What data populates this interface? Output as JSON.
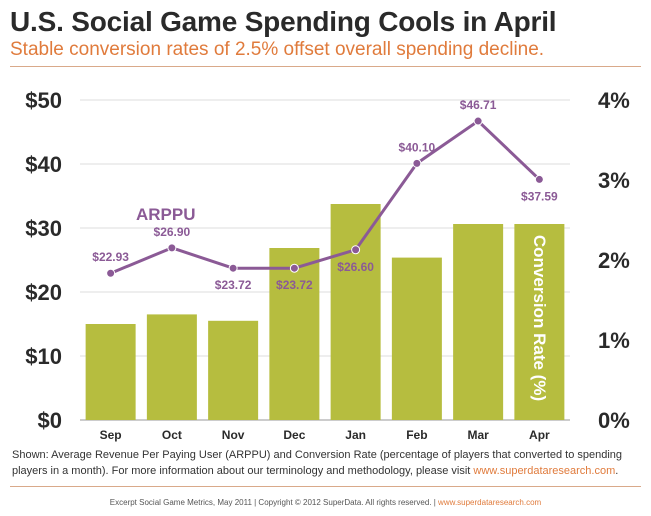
{
  "header": {
    "title": "U.S. Social Game Spending Cools in April",
    "subtitle": "Stable conversion rates of 2.5% offset overall spending decline."
  },
  "chart_data": {
    "type": "bar+line",
    "categories": [
      "Sep",
      "Oct",
      "Nov",
      "Dec",
      "Jan",
      "Feb",
      "Mar",
      "Apr"
    ],
    "bars": {
      "name": "Conversion Rate (%)",
      "axis": "right",
      "values": [
        1.2,
        1.32,
        1.24,
        2.15,
        2.7,
        2.03,
        2.45,
        2.45
      ],
      "ylim": [
        0,
        4
      ],
      "ticks": [
        "0%",
        "1%",
        "2%",
        "3%",
        "4%"
      ],
      "color": "#b6bd3f"
    },
    "line": {
      "name": "ARPPU",
      "axis": "left",
      "values": [
        22.93,
        26.9,
        23.72,
        23.72,
        26.6,
        40.1,
        46.71,
        37.59
      ],
      "labels": [
        "$22.93",
        "$26.90",
        "$23.72",
        "$23.72",
        "$26.60",
        "$40.10",
        "$46.71",
        "$37.59"
      ],
      "color": "#8b5a96",
      "ylim": [
        0,
        50
      ],
      "ticks": [
        "$0",
        "$10",
        "$20",
        "$30",
        "$40",
        "$50"
      ]
    },
    "grid": true,
    "legend": "inline"
  },
  "note": {
    "text": "Shown: Average Revenue Per Paying User (ARPPU) and Conversion Rate (percentage of players that converted to spending players in a month). For more information about our terminology and methodology, please visit ",
    "link": "www.superdataresearch.com",
    "end": "."
  },
  "footer": {
    "text": "Excerpt Social Game Metrics, May 2011 | Copyright © 2012 SuperData. All rights reserved. | ",
    "link": "www.superdataresearch.com"
  }
}
